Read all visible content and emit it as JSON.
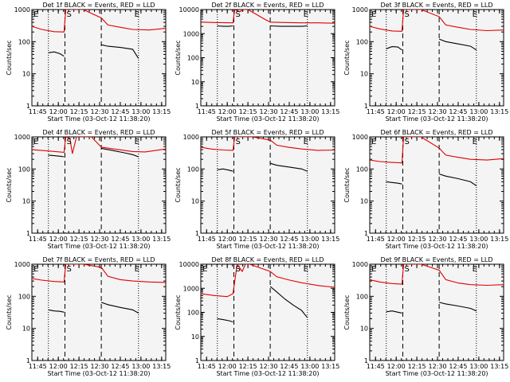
{
  "colors": {
    "events": "#000000",
    "lld": "#e00000"
  },
  "chart_data": [
    {
      "type": "line",
      "title": "Det 1f BLACK = Events, RED = LLD",
      "xlabel": "Start Time (03-Oct-12 11:38:20)",
      "ylabel": "Counts/sec",
      "xlim": [
        11.68,
        13.3
      ],
      "ylim": [
        1,
        1000
      ],
      "yscale": "log",
      "xticks": [
        11.75,
        12.0,
        12.25,
        12.5,
        12.75,
        13.0,
        13.25
      ],
      "xtick_labels": [
        "11:45",
        "12:00",
        "12:15",
        "12:30",
        "12:45",
        "13:00",
        "13:15"
      ],
      "yticks": [
        1,
        10,
        100,
        1000
      ],
      "ytick_labels": [
        "1",
        "10",
        "100",
        "1000"
      ],
      "dotted_lines": [
        11.88,
        12.97
      ],
      "dashed_lines": [
        12.08,
        12.52
      ],
      "markers": [
        {
          "x": 11.7,
          "label": "E"
        },
        {
          "x": 12.1,
          "label": "S"
        },
        {
          "x": 12.92,
          "label": "E"
        }
      ],
      "series": [
        {
          "color": "lld",
          "x": [
            11.68,
            11.8,
            11.95,
            12.07,
            12.09,
            12.3,
            12.52,
            12.6,
            12.75,
            12.9,
            13.1,
            13.3
          ],
          "y": [
            300,
            240,
            205,
            200,
            2000,
            2000,
            550,
            330,
            280,
            240,
            230,
            260
          ]
        },
        {
          "color": "events",
          "x": [
            11.88,
            11.95,
            12.02,
            12.07
          ],
          "y": [
            45,
            48,
            42,
            35
          ]
        },
        {
          "color": "events",
          "x": [
            12.52,
            12.6,
            12.75,
            12.9,
            12.97
          ],
          "y": [
            80,
            72,
            66,
            58,
            30
          ]
        }
      ]
    },
    {
      "type": "line",
      "title": "Det 2f BLACK = Events, RED = LLD",
      "xlabel": "Start Time (03-Oct-12 11:38:20)",
      "ylabel": "Counts/sec",
      "xlim": [
        11.68,
        13.3
      ],
      "ylim": [
        1,
        10000
      ],
      "yscale": "log",
      "xticks": [
        11.75,
        12.0,
        12.25,
        12.5,
        12.75,
        13.0,
        13.25
      ],
      "xtick_labels": [
        "11:45",
        "12:00",
        "12:15",
        "12:30",
        "12:45",
        "13:00",
        "13:15"
      ],
      "yticks": [
        1,
        10,
        100,
        1000,
        10000
      ],
      "ytick_labels": [
        "1",
        "10",
        "100",
        "1000",
        "10000"
      ],
      "dotted_lines": [
        11.88,
        12.97
      ],
      "dashed_lines": [
        12.08,
        12.52
      ],
      "markers": [
        {
          "x": 12.1,
          "label": "S"
        },
        {
          "x": 12.92,
          "label": "E"
        }
      ],
      "series": [
        {
          "color": "lld",
          "x": [
            11.68,
            11.85,
            12.07,
            12.09,
            12.15,
            12.2,
            12.25,
            12.45,
            12.52,
            12.7,
            12.9,
            13.1,
            13.3
          ],
          "y": [
            3000,
            2900,
            2800,
            20000,
            8000,
            20000,
            12000,
            4000,
            3000,
            2900,
            2800,
            2800,
            2700
          ]
        },
        {
          "color": "events",
          "x": [
            11.88,
            11.95,
            12.02,
            12.07
          ],
          "y": [
            2100,
            2000,
            2000,
            2100
          ]
        },
        {
          "color": "events",
          "x": [
            12.52,
            12.65,
            12.8,
            12.9,
            12.97
          ],
          "y": [
            2100,
            2000,
            2000,
            2000,
            2100
          ]
        }
      ]
    },
    {
      "type": "line",
      "title": "Det 3f BLACK = Events, RED = LLD",
      "xlabel": "Start Time (03-Oct-12 11:38:20)",
      "ylabel": "Counts/sec",
      "xlim": [
        11.68,
        13.3
      ],
      "ylim": [
        1,
        1000
      ],
      "yscale": "log",
      "xticks": [
        11.75,
        12.0,
        12.25,
        12.5,
        12.75,
        13.0,
        13.25
      ],
      "xtick_labels": [
        "11:45",
        "12:00",
        "12:15",
        "12:30",
        "12:45",
        "13:00",
        "13:15"
      ],
      "yticks": [
        1,
        10,
        100,
        1000
      ],
      "ytick_labels": [
        "1",
        "10",
        "100",
        "1000"
      ],
      "dotted_lines": [
        11.88,
        12.97
      ],
      "dashed_lines": [
        12.08,
        12.52
      ],
      "markers": [
        {
          "x": 11.7,
          "label": "E"
        },
        {
          "x": 12.1,
          "label": "S"
        },
        {
          "x": 12.92,
          "label": "E"
        }
      ],
      "series": [
        {
          "color": "lld",
          "x": [
            11.68,
            11.8,
            11.95,
            12.07,
            12.09,
            12.3,
            12.52,
            12.6,
            12.75,
            12.9,
            13.1,
            13.3
          ],
          "y": [
            300,
            250,
            215,
            210,
            2000,
            2000,
            600,
            330,
            280,
            240,
            220,
            230
          ]
        },
        {
          "color": "events",
          "x": [
            11.88,
            11.95,
            12.02,
            12.07
          ],
          "y": [
            60,
            70,
            68,
            55
          ]
        },
        {
          "color": "events",
          "x": [
            12.52,
            12.6,
            12.75,
            12.9,
            12.97
          ],
          "y": [
            120,
            100,
            85,
            72,
            55
          ]
        }
      ]
    },
    {
      "type": "line",
      "title": "Det 4f BLACK = Events, RED = LLD",
      "xlabel": "Start Time (03-Oct-12 11:38:20)",
      "ylabel": "Counts/sec",
      "xlim": [
        11.68,
        13.3
      ],
      "ylim": [
        1,
        1000
      ],
      "yscale": "log",
      "xticks": [
        11.75,
        12.0,
        12.25,
        12.5,
        12.75,
        13.0,
        13.25
      ],
      "xtick_labels": [
        "11:45",
        "12:00",
        "12:15",
        "12:30",
        "12:45",
        "13:00",
        "13:15"
      ],
      "yticks": [
        1,
        10,
        100,
        1000
      ],
      "ytick_labels": [
        "1",
        "10",
        "100",
        "1000"
      ],
      "dotted_lines": [
        11.88,
        12.97
      ],
      "dashed_lines": [
        12.08,
        12.52
      ],
      "markers": [
        {
          "x": 11.7,
          "label": "E"
        },
        {
          "x": 12.1,
          "label": "S"
        },
        {
          "x": 12.92,
          "label": "E"
        }
      ],
      "series": [
        {
          "color": "lld",
          "x": [
            11.68,
            11.85,
            12.07,
            12.09,
            12.14,
            12.17,
            12.22,
            12.3,
            12.4,
            12.52,
            12.7,
            12.9,
            13.05,
            13.3
          ],
          "y": [
            400,
            370,
            330,
            2000,
            900,
            300,
            1000,
            2000,
            1200,
            480,
            410,
            350,
            340,
            420
          ]
        },
        {
          "color": "events",
          "x": [
            11.88,
            11.95,
            12.02,
            12.07
          ],
          "y": [
            270,
            260,
            250,
            240
          ]
        },
        {
          "color": "events",
          "x": [
            12.52,
            12.65,
            12.8,
            12.9,
            12.97
          ],
          "y": [
            440,
            380,
            320,
            280,
            240
          ]
        }
      ]
    },
    {
      "type": "line",
      "title": "Det 5f BLACK = Events, RED = LLD",
      "xlabel": "Start Time (03-Oct-12 11:38:20)",
      "ylabel": "Counts/sec",
      "xlim": [
        11.68,
        13.3
      ],
      "ylim": [
        1,
        1000
      ],
      "yscale": "log",
      "xticks": [
        11.75,
        12.0,
        12.25,
        12.5,
        12.75,
        13.0,
        13.25
      ],
      "xtick_labels": [
        "11:45",
        "12:00",
        "12:15",
        "12:30",
        "12:45",
        "13:00",
        "13:15"
      ],
      "yticks": [
        1,
        10,
        100,
        1000
      ],
      "ytick_labels": [
        "1",
        "10",
        "100",
        "1000"
      ],
      "dotted_lines": [
        11.88,
        12.97
      ],
      "dashed_lines": [
        12.08,
        12.52
      ],
      "markers": [
        {
          "x": 12.1,
          "label": "S"
        },
        {
          "x": 12.92,
          "label": "E"
        }
      ],
      "series": [
        {
          "color": "lld",
          "x": [
            11.68,
            11.8,
            11.95,
            12.07,
            12.09,
            12.3,
            12.52,
            12.6,
            12.75,
            12.9,
            13.1,
            13.3
          ],
          "y": [
            480,
            420,
            390,
            380,
            2000,
            2000,
            800,
            550,
            470,
            420,
            380,
            390
          ]
        },
        {
          "color": "events",
          "x": [
            11.88,
            11.95,
            12.02,
            12.07
          ],
          "y": [
            95,
            100,
            92,
            85
          ]
        },
        {
          "color": "events",
          "x": [
            12.52,
            12.6,
            12.75,
            12.9,
            12.97
          ],
          "y": [
            150,
            130,
            115,
            100,
            85
          ]
        }
      ]
    },
    {
      "type": "line",
      "title": "Det 6f BLACK = Events, RED = LLD",
      "xlabel": "Start Time (03-Oct-12 11:38:20)",
      "ylabel": "Counts/sec",
      "xlim": [
        11.68,
        13.3
      ],
      "ylim": [
        1,
        1000
      ],
      "yscale": "log",
      "xticks": [
        11.75,
        12.0,
        12.25,
        12.5,
        12.75,
        13.0,
        13.25
      ],
      "xtick_labels": [
        "11:45",
        "12:00",
        "12:15",
        "12:30",
        "12:45",
        "13:00",
        "13:15"
      ],
      "yticks": [
        1,
        10,
        100,
        1000
      ],
      "ytick_labels": [
        "1",
        "10",
        "100",
        "1000"
      ],
      "dotted_lines": [
        11.88,
        12.97
      ],
      "dashed_lines": [
        12.08,
        12.52
      ],
      "markers": [
        {
          "x": 11.7,
          "label": "E"
        },
        {
          "x": 12.1,
          "label": "S"
        },
        {
          "x": 12.92,
          "label": "E"
        }
      ],
      "series": [
        {
          "color": "lld",
          "x": [
            11.68,
            11.8,
            11.95,
            12.07,
            12.09,
            12.3,
            12.52,
            12.6,
            12.75,
            12.9,
            13.1,
            13.3
          ],
          "y": [
            190,
            170,
            160,
            155,
            2000,
            2000,
            450,
            270,
            230,
            200,
            190,
            210
          ]
        },
        {
          "color": "events",
          "x": [
            11.88,
            11.95,
            12.02,
            12.07
          ],
          "y": [
            40,
            38,
            36,
            34
          ]
        },
        {
          "color": "events",
          "x": [
            12.52,
            12.6,
            12.75,
            12.9,
            12.97
          ],
          "y": [
            70,
            60,
            50,
            40,
            30
          ]
        }
      ]
    },
    {
      "type": "line",
      "title": "Det 7f BLACK = Events, RED = LLD",
      "xlabel": "Start Time (03-Oct-12 11:38:20)",
      "ylabel": "Counts/sec",
      "xlim": [
        11.68,
        13.3
      ],
      "ylim": [
        1,
        1000
      ],
      "yscale": "log",
      "xticks": [
        11.75,
        12.0,
        12.25,
        12.5,
        12.75,
        13.0,
        13.25
      ],
      "xtick_labels": [
        "11:45",
        "12:00",
        "12:15",
        "12:30",
        "12:45",
        "13:00",
        "13:15"
      ],
      "yticks": [
        1,
        10,
        100,
        1000
      ],
      "ytick_labels": [
        "1",
        "10",
        "100",
        "1000"
      ],
      "dotted_lines": [
        11.88,
        12.97
      ],
      "dashed_lines": [
        12.08,
        12.52
      ],
      "markers": [
        {
          "x": 11.7,
          "label": "E"
        },
        {
          "x": 12.1,
          "label": "S"
        },
        {
          "x": 12.92,
          "label": "E"
        }
      ],
      "series": [
        {
          "color": "lld",
          "x": [
            11.68,
            11.8,
            11.95,
            12.07,
            12.09,
            12.3,
            12.52,
            12.6,
            12.75,
            12.9,
            13.1,
            13.3
          ],
          "y": [
            360,
            320,
            290,
            280,
            2000,
            2000,
            800,
            420,
            330,
            300,
            280,
            270
          ]
        },
        {
          "color": "events",
          "x": [
            11.88,
            11.95,
            12.02,
            12.07
          ],
          "y": [
            38,
            35,
            34,
            32
          ]
        },
        {
          "color": "events",
          "x": [
            12.52,
            12.6,
            12.75,
            12.9,
            12.97
          ],
          "y": [
            65,
            55,
            45,
            38,
            30
          ]
        }
      ]
    },
    {
      "type": "line",
      "title": "Det 8f BLACK = Events, RED = LLD",
      "xlabel": "Start Time (03-Oct-12 11:38:20)",
      "ylabel": "Counts/sec",
      "xlim": [
        11.68,
        13.3
      ],
      "ylim": [
        1,
        10000
      ],
      "yscale": "log",
      "xticks": [
        11.75,
        12.0,
        12.25,
        12.5,
        12.75,
        13.0,
        13.25
      ],
      "xtick_labels": [
        "11:45",
        "12:00",
        "12:15",
        "12:30",
        "12:45",
        "13:00",
        "13:15"
      ],
      "yticks": [
        1,
        10,
        100,
        1000,
        10000
      ],
      "ytick_labels": [
        "1",
        "10",
        "100",
        "1000",
        "10000"
      ],
      "dotted_lines": [
        11.88,
        12.97
      ],
      "dashed_lines": [
        12.08,
        12.52
      ],
      "markers": [
        {
          "x": 11.7,
          "label": "E"
        },
        {
          "x": 12.1,
          "label": "S"
        },
        {
          "x": 12.92,
          "label": "E"
        }
      ],
      "series": [
        {
          "color": "lld",
          "x": [
            11.68,
            11.85,
            12.0,
            12.07,
            12.12,
            12.18,
            12.22,
            12.27,
            12.52,
            12.6,
            12.75,
            12.9,
            13.1,
            13.3
          ],
          "y": [
            600,
            500,
            450,
            600,
            20000,
            5000,
            20000,
            20000,
            5000,
            3000,
            2200,
            1700,
            1300,
            1100
          ]
        },
        {
          "color": "events",
          "x": [
            11.88,
            11.95,
            12.02,
            12.07
          ],
          "y": [
            55,
            50,
            45,
            40
          ]
        },
        {
          "color": "events",
          "x": [
            12.52,
            12.6,
            12.7,
            12.8,
            12.9,
            12.97
          ],
          "y": [
            1200,
            700,
            350,
            200,
            120,
            60
          ]
        }
      ]
    },
    {
      "type": "line",
      "title": "Det 9f BLACK = Events, RED = LLD",
      "xlabel": "Start Time (03-Oct-12 11:38:20)",
      "ylabel": "Counts/sec",
      "xlim": [
        11.68,
        13.3
      ],
      "ylim": [
        1,
        1000
      ],
      "yscale": "log",
      "xticks": [
        11.75,
        12.0,
        12.25,
        12.5,
        12.75,
        13.0,
        13.25
      ],
      "xtick_labels": [
        "11:45",
        "12:00",
        "12:15",
        "12:30",
        "12:45",
        "13:00",
        "13:15"
      ],
      "yticks": [
        1,
        10,
        100,
        1000
      ],
      "ytick_labels": [
        "1",
        "10",
        "100",
        "1000"
      ],
      "dotted_lines": [
        11.88,
        12.97
      ],
      "dashed_lines": [
        12.08,
        12.52
      ],
      "markers": [
        {
          "x": 11.7,
          "label": "E"
        },
        {
          "x": 12.1,
          "label": "S"
        },
        {
          "x": 12.92,
          "label": "E"
        }
      ],
      "series": [
        {
          "color": "lld",
          "x": [
            11.68,
            11.8,
            11.95,
            12.07,
            12.09,
            12.3,
            12.52,
            12.6,
            12.75,
            12.9,
            13.1,
            13.3
          ],
          "y": [
            330,
            280,
            250,
            240,
            2000,
            2000,
            650,
            330,
            260,
            230,
            220,
            230
          ]
        },
        {
          "color": "events",
          "x": [
            11.88,
            11.95,
            12.02,
            12.07
          ],
          "y": [
            33,
            35,
            32,
            30
          ]
        },
        {
          "color": "events",
          "x": [
            12.52,
            12.6,
            12.75,
            12.9,
            12.97
          ],
          "y": [
            65,
            58,
            50,
            42,
            35
          ]
        }
      ]
    }
  ]
}
